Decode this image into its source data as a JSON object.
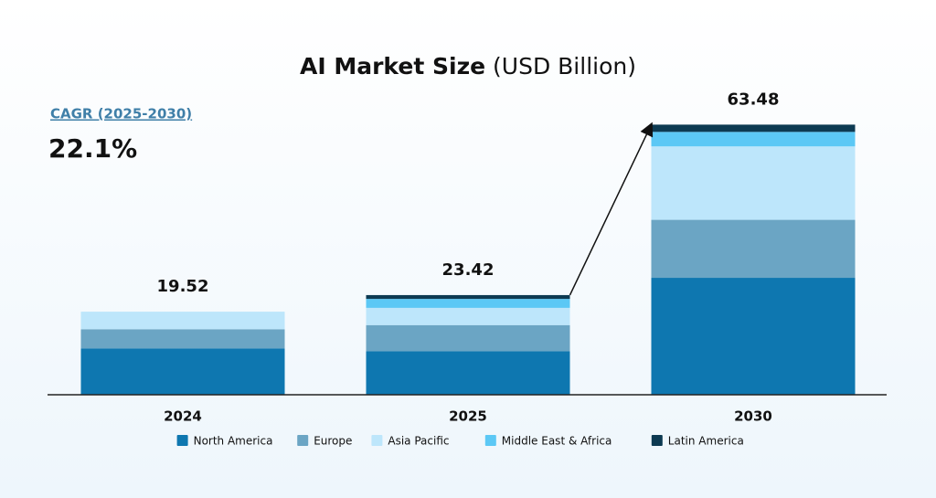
{
  "chart_data": {
    "type": "stacked_bar",
    "title": "AI Market Size",
    "title_unit": "(USD Billion)",
    "annotation": {
      "label": "CAGR (2025-2030)",
      "value": "22.1%"
    },
    "categories": [
      "2024",
      "2025",
      "2030"
    ],
    "totals": [
      19.52,
      23.42,
      63.48
    ],
    "series": [
      {
        "name": "North America",
        "color": "#0e77b0",
        "values": [
          10.9,
          10.21,
          27.48
        ]
      },
      {
        "name": "Europe",
        "color": "#6ba5c4",
        "values": [
          4.5,
          6.16,
          13.63
        ]
      },
      {
        "name": "Asia Pacific",
        "color": "#bde6fb",
        "values": [
          4.12,
          4.05,
          17.25
        ]
      },
      {
        "name": "Middle East & Africa",
        "color": "#5cc8f5",
        "values": [
          0,
          2.1,
          3.41
        ]
      },
      {
        "name": "Latin America",
        "color": "#0d3a52",
        "values": [
          0,
          0.9,
          1.71
        ]
      }
    ],
    "ylim": [
      0,
      67
    ]
  }
}
